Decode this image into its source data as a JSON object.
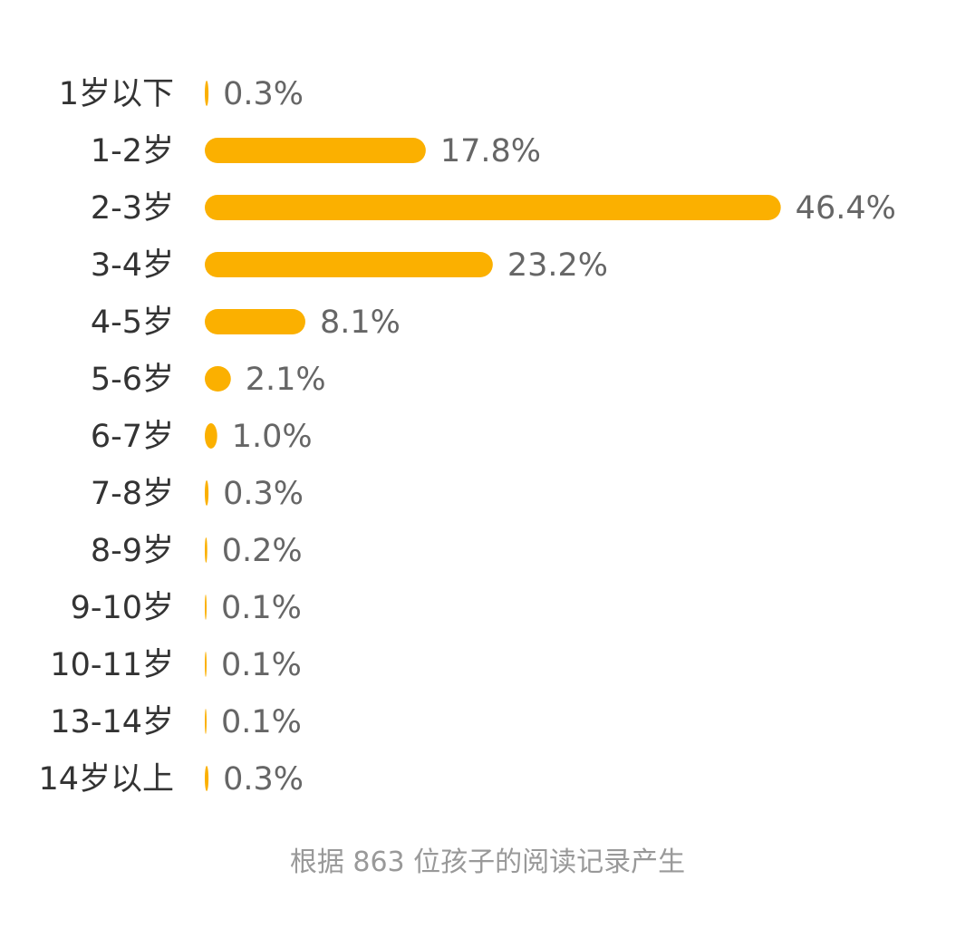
{
  "chart_data": {
    "type": "bar",
    "orientation": "horizontal",
    "categories": [
      "1岁以下",
      "1-2岁",
      "2-3岁",
      "3-4岁",
      "4-5岁",
      "5-6岁",
      "6-7岁",
      "7-8岁",
      "8-9岁",
      "9-10岁",
      "10-11岁",
      "13-14岁",
      "14岁以上"
    ],
    "values": [
      0.3,
      17.8,
      46.4,
      23.2,
      8.1,
      2.1,
      1.0,
      0.3,
      0.2,
      0.1,
      0.1,
      0.1,
      0.3
    ],
    "value_labels": [
      "0.3%",
      "17.8%",
      "46.4%",
      "23.2%",
      "8.1%",
      "2.1%",
      "1.0%",
      "0.3%",
      "0.2%",
      "0.1%",
      "0.1%",
      "0.1%",
      "0.3%"
    ],
    "unit": "%",
    "grid": false,
    "bar_color": "#FBB000"
  },
  "footer": "根据 863 位孩子的阅读记录产生"
}
